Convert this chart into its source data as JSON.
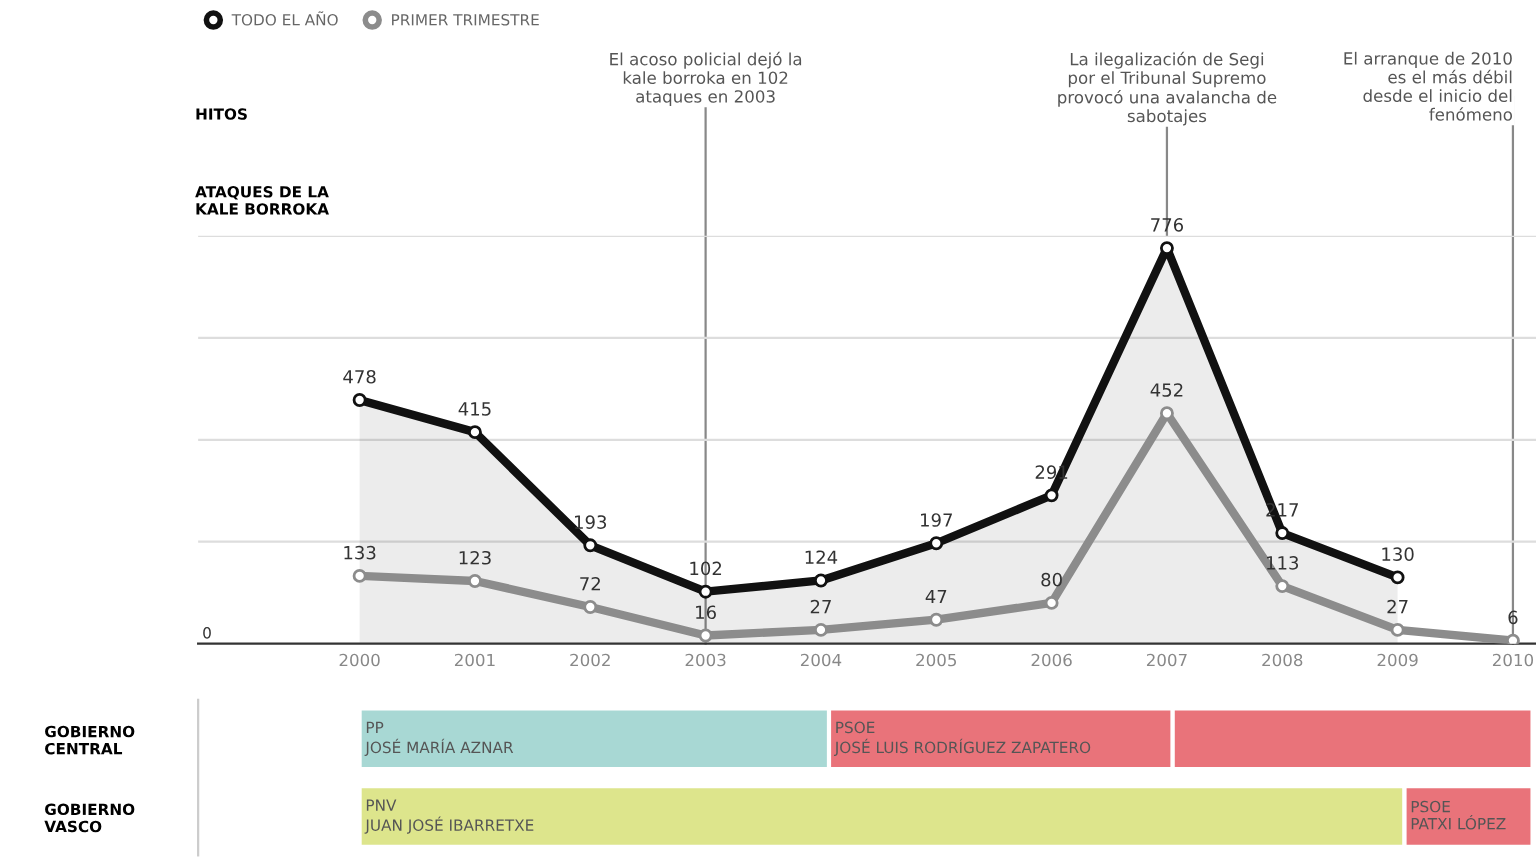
{
  "chart_data": [
    {
      "type": "line",
      "x": [
        2000,
        2001,
        2002,
        2003,
        2004,
        2005,
        2006,
        2007,
        2008,
        2009,
        2010
      ],
      "series": [
        {
          "name": "TODO EL AÑO",
          "color": "#111111",
          "type": "area",
          "values": [
            478,
            415,
            193,
            102,
            124,
            197,
            291,
            776,
            217,
            130,
            null
          ]
        },
        {
          "name": "PRIMER TRIMESTRE",
          "color": "#8c8c8c",
          "values": [
            133,
            123,
            72,
            16,
            27,
            47,
            80,
            452,
            113,
            27,
            6
          ]
        }
      ],
      "xlim": [
        1998.6,
        2010.2
      ],
      "xticks": [
        2000,
        2001,
        2002,
        2003,
        2004,
        2005,
        2006,
        2007,
        2008,
        2009,
        2010
      ],
      "ylim": [
        0,
        800
      ],
      "yticks": [
        {
          "value": 200,
          "label": null
        },
        {
          "value": 400,
          "label": null
        },
        {
          "value": 600,
          "label": null
        },
        {
          "value": 800,
          "label": null
        }
      ],
      "grid": "y",
      "legend": "top left",
      "marker": "circle",
      "data_labels": true,
      "annotations": [
        "HITOS",
        "ATAQUES DE LA\nKALE BORROKA",
        "0"
      ],
      "ref_lines": [
        {
          "axis": "x",
          "value": 2003,
          "label": "El acoso policial dejó la\nkale borroka en 102\nataques en 2003",
          "color": "#888888"
        },
        {
          "axis": "x",
          "value": 2007,
          "label": "La ilegalización de Segi\npor el Tribunal Supremo\nprovocó una avalancha de\nsabotajes",
          "color": "#888888"
        },
        {
          "axis": "x",
          "value": 2010,
          "label": "El arranque de 2010\nes el más débil\ndesde el inicio del\nfenómeno",
          "color": "#888888"
        }
      ]
    },
    {
      "type": "bar",
      "orientation": "horizontal",
      "tick_labels": "y",
      "categories": [
        "GOBIERNO\nCENTRAL",
        "GOBIERNO\nVASCO"
      ],
      "series": [
        {
          "colors": [
            "#a8d8d4",
            "#dde58c"
          ],
          "base": [
            2000,
            2000
          ],
          "values": [
            4.07,
            9.06
          ],
          "value_labels": [
            "PP\nJOSÉ MARÍA AZNAR",
            "PNV\nJUAN JOSÉ IBARRETXE"
          ]
        },
        {
          "colors": [
            "#e9737a",
            "#e9737a"
          ],
          "base": [
            2004.07,
            2009.06
          ],
          "values": [
            2.98,
            1.11
          ],
          "value_labels": [
            "PSOE\nJOSÉ LUIS RODRÍGUEZ ZAPATERO",
            "PSOE\nPATXI LÓPEZ"
          ]
        },
        {
          "colors": [
            "#e9737a",
            null
          ],
          "base": [
            2007.05,
            null
          ],
          "values": [
            3.12,
            null
          ],
          "value_labels": [
            null,
            null
          ]
        }
      ],
      "xlim": [
        1998.6,
        2010.2
      ]
    }
  ]
}
